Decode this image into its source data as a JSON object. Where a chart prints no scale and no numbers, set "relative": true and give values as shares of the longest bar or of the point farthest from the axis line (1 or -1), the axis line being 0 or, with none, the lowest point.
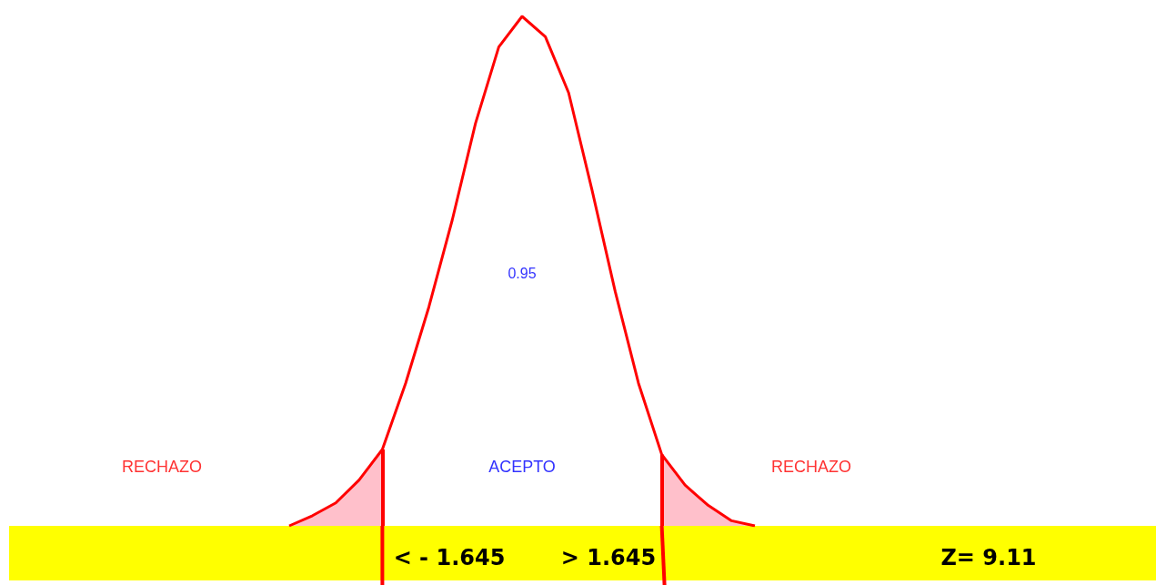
{
  "chart_data": {
    "type": "line",
    "relative": true,
    "grid": false,
    "categories": [
      null,
      null,
      null,
      null,
      null,
      null,
      null,
      null,
      null,
      null,
      null,
      null,
      null,
      null,
      null,
      null,
      null,
      null,
      null,
      null,
      null
    ],
    "series": [
      {
        "color": "#ff0000",
        "values": [
          0,
          0.02,
          0.045,
          0.09,
          0.15,
          0.28,
          0.43,
          0.6,
          0.79,
          0.94,
          1,
          0.96,
          0.85,
          0.66,
          0.46,
          0.28,
          0.14,
          0.08,
          0.04,
          0.01,
          0
        ]
      },
      {
        "type": "area",
        "color": "#ffc0cb",
        "values": [
          0,
          0.02,
          0.045,
          0.09,
          0.15,
          null,
          null,
          null,
          null,
          null,
          null,
          null,
          null,
          null,
          null,
          null,
          null,
          null,
          null,
          null,
          null
        ]
      },
      {
        "type": "area",
        "color": "#ffc0cb",
        "values": [
          null,
          null,
          null,
          null,
          null,
          null,
          null,
          null,
          null,
          null,
          null,
          null,
          null,
          null,
          null,
          null,
          0.14,
          0.08,
          0.04,
          0.01,
          0
        ]
      }
    ],
    "annotations": [
      "0.95",
      "ACEPTO",
      "RECHAZO",
      "RECHAZO",
      "< - 1.645",
      "> 1.645",
      "Z= 9.11"
    ]
  }
}
